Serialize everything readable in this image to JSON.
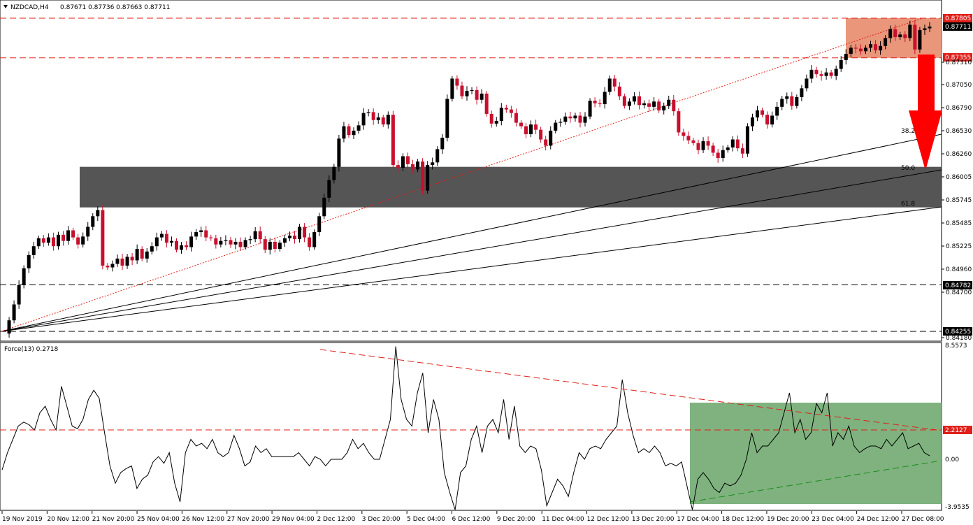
{
  "header": {
    "symbol": "NZDCAD,H4",
    "ohlc": "0.87671 0.87736 0.87663 0.87711"
  },
  "indicator": {
    "label": "Force(13) 0.2718"
  },
  "colors": {
    "bull": "#000000",
    "bear": "#c8102e",
    "resistance_zone": "#e9967a",
    "support_zone": "#555555",
    "force_zone": "#7fb27f",
    "arrow": "#ff0000",
    "dashed_red": "#e0201a",
    "dashed_green": "#1a8a1a"
  },
  "price_axis": {
    "ticks": [
      "0.87805",
      "0.87711",
      "0.87355",
      "0.87310",
      "0.87050",
      "0.86790",
      "0.86530",
      "0.86260",
      "0.86005",
      "0.85745",
      "0.85485",
      "0.85225",
      "0.84960",
      "0.84782",
      "0.84700",
      "0.84255",
      "0.84180"
    ],
    "highlight": {
      "0.87805": "red",
      "0.87711": "black",
      "0.87355": "red",
      "0.84782": "black",
      "0.84255": "black"
    }
  },
  "force_axis": {
    "ticks": [
      "8.5573",
      "2.2127",
      "0.00",
      "-3.9535"
    ],
    "highlight": {
      "2.2127": "red"
    }
  },
  "time_axis": [
    "19 Nov 2019",
    "20 Nov 12:00",
    "21 Nov 20:00",
    "25 Nov 04:00",
    "26 Nov 12:00",
    "27 Nov 20:00",
    "29 Nov 04:00",
    "2 Dec 12:00",
    "3 Dec 20:00",
    "5 Dec 04:00",
    "6 Dec 12:00",
    "9 Dec 20:00",
    "11 Dec 04:00",
    "12 Dec 12:00",
    "13 Dec 20:00",
    "17 Dec 04:00",
    "18 Dec 12:00",
    "19 Dec 20:00",
    "23 Dec 04:00",
    "24 Dec 12:00",
    "27 Dec 08:00"
  ],
  "fib_labels": [
    "38.2",
    "50.0",
    "61.8"
  ],
  "chart_data": {
    "type": "candlestick",
    "symbol": "NZDCAD",
    "timeframe": "H4",
    "levels": {
      "resistance_top": 0.87805,
      "resistance_bottom": 0.87355,
      "support_top": 0.8612,
      "support_bottom": 0.8566,
      "horizontal_lines": [
        0.87805,
        0.87355,
        0.84782,
        0.84255
      ]
    },
    "price_path": [
      0.8423,
      0.8438,
      0.8456,
      0.8478,
      0.8497,
      0.8512,
      0.8522,
      0.8531,
      0.8526,
      0.8532,
      0.8522,
      0.8535,
      0.8528,
      0.854,
      0.8532,
      0.8524,
      0.8533,
      0.8544,
      0.8556,
      0.8563,
      0.85,
      0.8498,
      0.8502,
      0.8508,
      0.85,
      0.851,
      0.8506,
      0.8519,
      0.8508,
      0.8516,
      0.8522,
      0.8532,
      0.8536,
      0.8526,
      0.8528,
      0.8518,
      0.8523,
      0.8521,
      0.8533,
      0.8538,
      0.854,
      0.8532,
      0.8531,
      0.8524,
      0.8528,
      0.8529,
      0.8524,
      0.8527,
      0.8521,
      0.8529,
      0.853,
      0.8539,
      0.853,
      0.8518,
      0.8527,
      0.8519,
      0.8526,
      0.8531,
      0.8534,
      0.853,
      0.8544,
      0.8532,
      0.8521,
      0.8538,
      0.8556,
      0.8577,
      0.8597,
      0.8612,
      0.8644,
      0.8658,
      0.8648,
      0.8653,
      0.8659,
      0.8673,
      0.8674,
      0.8665,
      0.8668,
      0.866,
      0.8671,
      0.8614,
      0.8611,
      0.8624,
      0.8615,
      0.8609,
      0.8618,
      0.8585,
      0.8614,
      0.8617,
      0.8632,
      0.8645,
      0.8689,
      0.8712,
      0.8704,
      0.8692,
      0.8698,
      0.8699,
      0.8688,
      0.8695,
      0.8672,
      0.8661,
      0.8664,
      0.8679,
      0.8677,
      0.8673,
      0.8662,
      0.8658,
      0.8649,
      0.866,
      0.8654,
      0.8643,
      0.8636,
      0.8653,
      0.8662,
      0.8663,
      0.8669,
      0.8667,
      0.867,
      0.8662,
      0.8669,
      0.8687,
      0.8684,
      0.8683,
      0.8697,
      0.8712,
      0.8703,
      0.8692,
      0.8681,
      0.8686,
      0.8692,
      0.8682,
      0.8684,
      0.868,
      0.8686,
      0.8676,
      0.8681,
      0.8688,
      0.8675,
      0.8651,
      0.8647,
      0.8642,
      0.8639,
      0.8631,
      0.8641,
      0.8636,
      0.8628,
      0.8622,
      0.8631,
      0.8634,
      0.8643,
      0.8633,
      0.8627,
      0.8658,
      0.8668,
      0.8676,
      0.8671,
      0.866,
      0.867,
      0.868,
      0.8689,
      0.8692,
      0.8681,
      0.8691,
      0.8701,
      0.8712,
      0.8722,
      0.8717,
      0.8715,
      0.8719,
      0.8715,
      0.8723,
      0.8733,
      0.874,
      0.8747,
      0.8746,
      0.8743,
      0.8747,
      0.8751,
      0.8744,
      0.8749,
      0.8758,
      0.8768,
      0.8759,
      0.8762,
      0.8758,
      0.8773,
      0.8745,
      0.8767,
      0.8769,
      0.8771
    ],
    "force_path": [
      -0.8,
      0.5,
      1.5,
      2.5,
      2.8,
      2.6,
      2.2,
      3.5,
      4.0,
      3.0,
      2.2,
      5.5,
      4.0,
      2.5,
      2.3,
      3.0,
      4.5,
      5.2,
      4.6,
      2.0,
      -0.5,
      -1.8,
      -1.0,
      -0.7,
      -0.5,
      -2.2,
      -1.5,
      -1.2,
      -0.2,
      0.2,
      -0.3,
      0.5,
      -1.8,
      -3.2,
      0.5,
      1.5,
      1.0,
      1.2,
      0.8,
      1.5,
      0.5,
      0.2,
      0.5,
      1.8,
      0.8,
      -0.5,
      -0.2,
      1.0,
      0.5,
      0.8,
      0.2,
      0.2,
      0.2,
      0.2,
      0.2,
      0.5,
      0.0,
      -0.5,
      0.2,
      0.0,
      -0.5,
      0.0,
      0.0,
      0.0,
      0.5,
      1.5,
      0.8,
      1.2,
      0.5,
      0.0,
      0.0,
      1.5,
      3.0,
      8.5,
      4.5,
      3.0,
      2.5,
      5.0,
      6.5,
      2.0,
      4.5,
      3.0,
      -1.0,
      -2.5,
      -3.8,
      -1.0,
      -0.5,
      1.5,
      2.5,
      0.5,
      2.5,
      3.0,
      2.0,
      4.5,
      1.5,
      4.0,
      1.0,
      0.5,
      1.0,
      0.8,
      -0.8,
      -3.5,
      -2.5,
      -1.5,
      -2.0,
      -2.8,
      -1.0,
      0.5,
      0.0,
      0.8,
      1.0,
      0.8,
      1.5,
      2.0,
      2.5,
      6.0,
      3.5,
      1.8,
      0.5,
      0.8,
      0.5,
      1.0,
      0.5,
      -0.5,
      -0.3,
      -0.5,
      -0.2,
      -2.0,
      -3.8,
      -1.5,
      -1.0,
      -1.5,
      -2.2,
      -2.5,
      -1.8,
      -2.0,
      -1.8,
      -1.2,
      0.0,
      2.0,
      0.5,
      1.0,
      1.0,
      1.5,
      2.0,
      3.5,
      5.0,
      2.0,
      3.0,
      1.5,
      2.0,
      4.2,
      3.5,
      5.0,
      1.0,
      2.0,
      1.5,
      2.5,
      1.0,
      0.5,
      0.8,
      1.0,
      1.0,
      0.8,
      1.5,
      1.0,
      1.5,
      2.0,
      0.8,
      1.0,
      1.2,
      0.5,
      0.27
    ]
  }
}
